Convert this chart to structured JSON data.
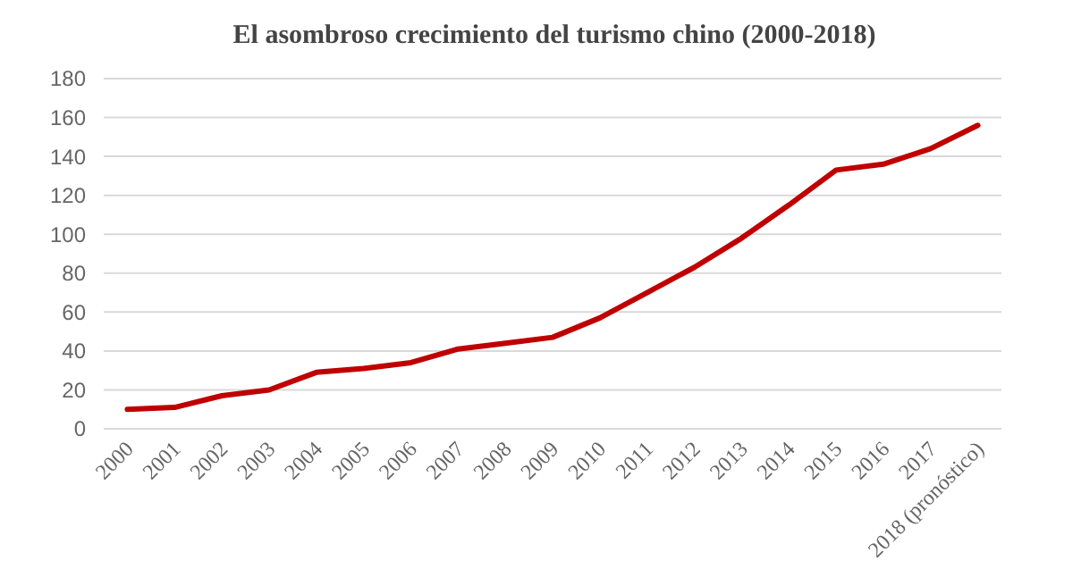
{
  "chart_data": {
    "type": "line",
    "title": "El asombroso crecimiento del turismo chino (2000-2018)",
    "categories": [
      "2000",
      "2001",
      "2002",
      "2003",
      "2004",
      "2005",
      "2006",
      "2007",
      "2008",
      "2009",
      "2010",
      "2011",
      "2012",
      "2013",
      "2014",
      "2015",
      "2016",
      "2017",
      "2018 (pronóstico)"
    ],
    "series": [
      {
        "color": "#c00000",
        "values": [
          10,
          11,
          17,
          20,
          29,
          31,
          34,
          41,
          44,
          47,
          57,
          70,
          83,
          98,
          115,
          133,
          136,
          144,
          156
        ]
      }
    ],
    "ylim": [
      0,
      180
    ],
    "yticks": [
      0,
      20,
      40,
      60,
      80,
      100,
      120,
      140,
      160,
      180
    ],
    "grid": "y",
    "marker": "none",
    "line_style": "solid"
  }
}
